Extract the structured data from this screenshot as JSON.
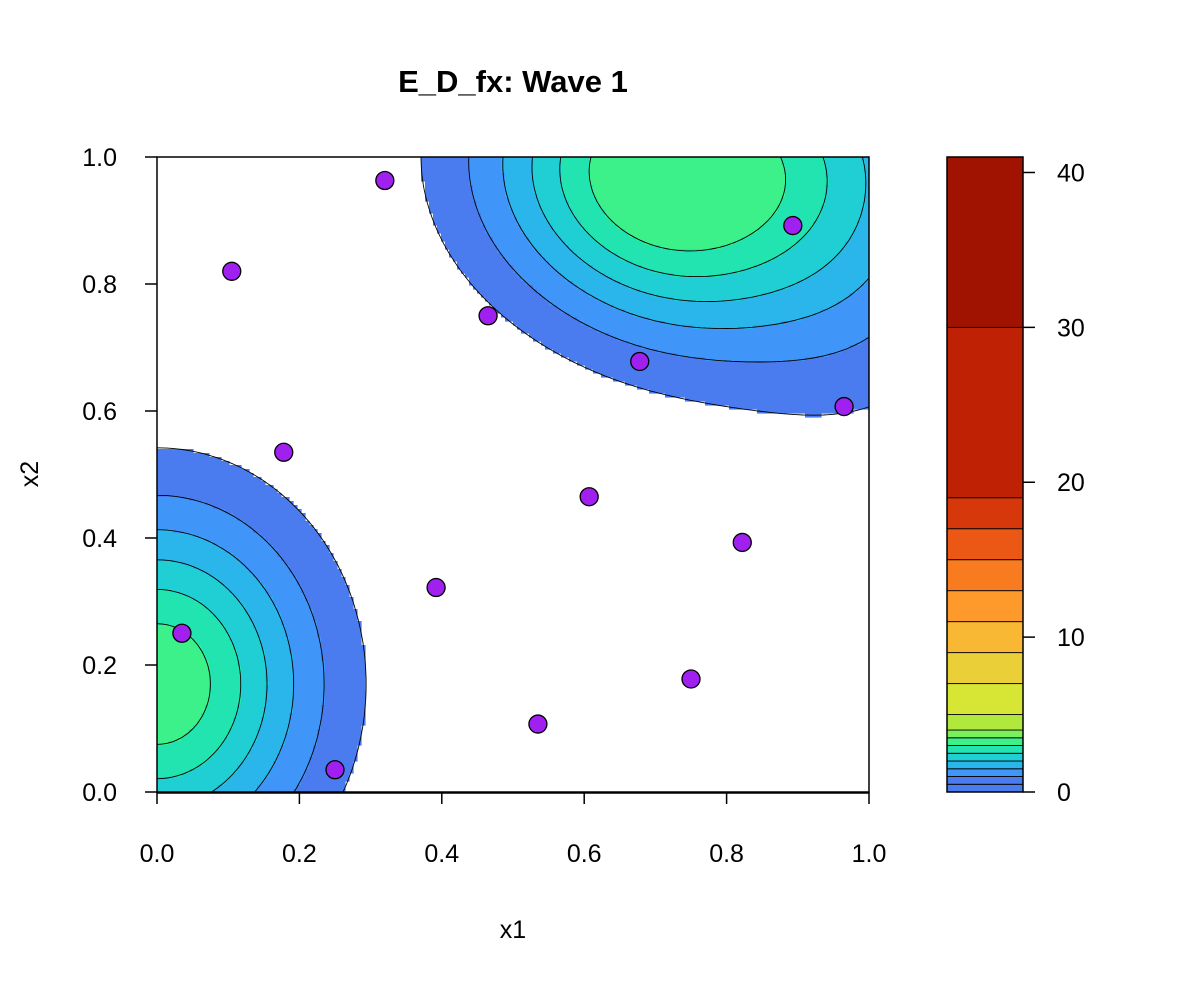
{
  "chart_data": {
    "type": "filled-contour",
    "title": "E_D_fx: Wave 1",
    "xlabel": "x1",
    "ylabel": "x2",
    "xlim": [
      0,
      1
    ],
    "ylim": [
      0,
      1
    ],
    "xticks": [
      "0.0",
      "0.2",
      "0.4",
      "0.6",
      "0.8",
      "1.0"
    ],
    "yticks": [
      "0.0",
      "0.2",
      "0.4",
      "0.6",
      "0.8",
      "1.0"
    ],
    "legend_position": "right",
    "colorbar": {
      "ticks": [
        "0",
        "10",
        "20",
        "30",
        "40"
      ],
      "range": [
        0,
        41
      ],
      "breaks": [
        0,
        0.5,
        1,
        1.5,
        2,
        2.5,
        3,
        3.5,
        4,
        5,
        7,
        9,
        11,
        13,
        15,
        17,
        19,
        30,
        41
      ],
      "colors": [
        "#4a7cf0",
        "#4a7cf0",
        "#3f95f8",
        "#2ab6ea",
        "#1fcfd4",
        "#22e4b0",
        "#3cf08a",
        "#7af05a",
        "#b0e83e",
        "#d7e535",
        "#eacf38",
        "#f9b834",
        "#fd9a2b",
        "#f87b20",
        "#eb5816",
        "#d6380b",
        "#be2104",
        "#a01300",
        "#7a0401"
      ]
    },
    "contour_levels": [
      0.5,
      1,
      1.5,
      2,
      2.5,
      3
    ],
    "fill_colors": [
      "#ffffff",
      "#4a7cf0",
      "#3f95f8",
      "#2ab6ea",
      "#1fcfd4",
      "#22e4b0",
      "#3cf08a"
    ],
    "points": [
      {
        "x": 0.035,
        "y": 0.25
      },
      {
        "x": 0.105,
        "y": 0.82
      },
      {
        "x": 0.178,
        "y": 0.535
      },
      {
        "x": 0.25,
        "y": 0.035
      },
      {
        "x": 0.32,
        "y": 0.963
      },
      {
        "x": 0.392,
        "y": 0.322
      },
      {
        "x": 0.465,
        "y": 0.75
      },
      {
        "x": 0.535,
        "y": 0.107
      },
      {
        "x": 0.607,
        "y": 0.465
      },
      {
        "x": 0.678,
        "y": 0.678
      },
      {
        "x": 0.75,
        "y": 0.178
      },
      {
        "x": 0.822,
        "y": 0.393
      },
      {
        "x": 0.893,
        "y": 0.892
      },
      {
        "x": 0.965,
        "y": 0.607
      }
    ],
    "point_color": "#a020f0"
  }
}
